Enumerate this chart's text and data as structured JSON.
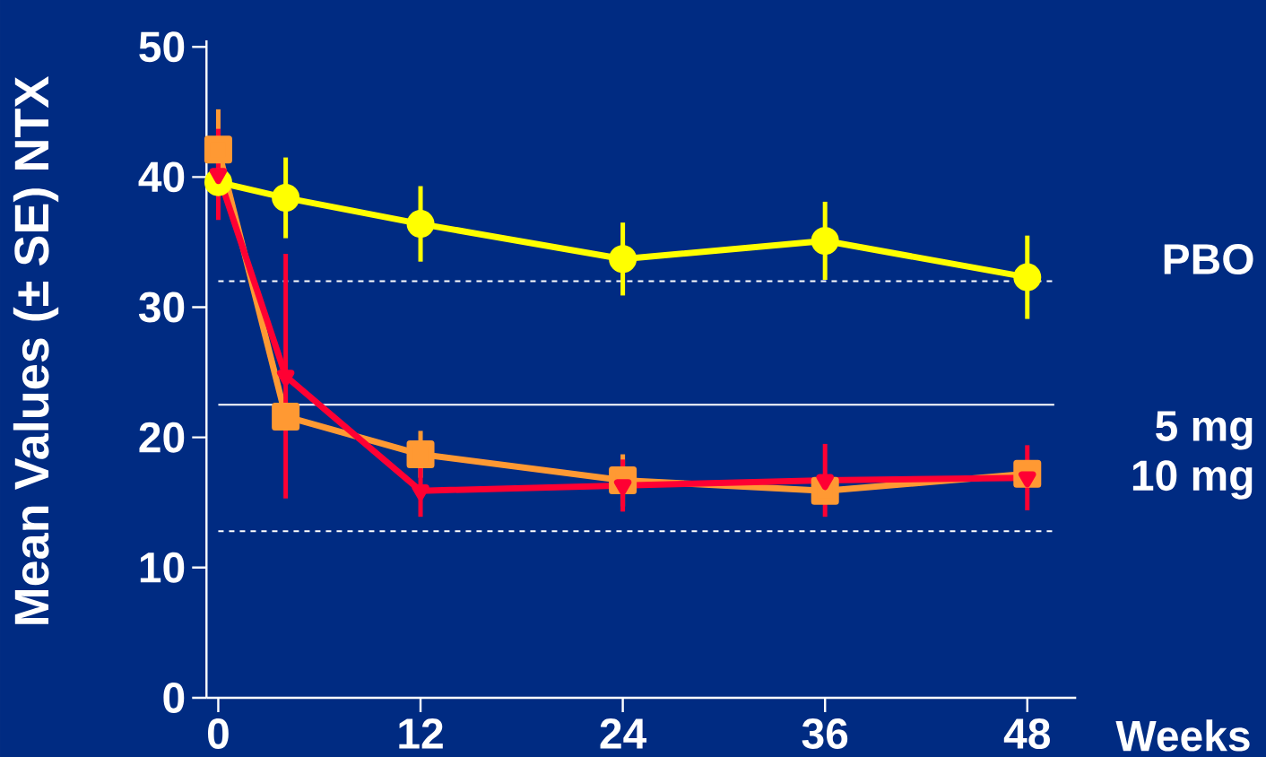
{
  "chart_data": {
    "type": "line",
    "xlabel": "Weeks",
    "ylabel": "Mean Values (± SE) NTX",
    "x": [
      0,
      4,
      12,
      24,
      36,
      48
    ],
    "series": [
      {
        "name": "PBO",
        "color": "#ffff00",
        "marker": "circle",
        "values": [
          39.6,
          38.4,
          36.4,
          33.7,
          35.1,
          32.3
        ],
        "errors": [
          null,
          3.1,
          2.9,
          2.8,
          3.0,
          3.2
        ]
      },
      {
        "name": "5 mg",
        "color": "#ff9933",
        "marker": "square",
        "values": [
          42.1,
          21.6,
          18.7,
          16.7,
          15.9,
          17.2
        ],
        "errors": [
          3.1,
          null,
          1.8,
          2.0,
          null,
          null
        ]
      },
      {
        "name": "10 mg",
        "color": "#ff0033",
        "marker": "triangle",
        "values": [
          40.2,
          24.7,
          15.9,
          16.3,
          16.7,
          16.9
        ],
        "errors": [
          3.5,
          9.4,
          2.0,
          2.0,
          2.8,
          2.5
        ]
      }
    ],
    "xlim": [
      -0.7,
      50.9
    ],
    "ylim": [
      0,
      50.5
    ],
    "xticks": [
      0,
      12,
      24,
      36,
      48
    ],
    "yticks": [
      0,
      10,
      20,
      30,
      40,
      50
    ],
    "ref_lines": [
      {
        "axis": "y",
        "value": 32.0,
        "color": "#ffffff",
        "line_style": "dashed"
      },
      {
        "axis": "y",
        "value": 22.5,
        "color": "#ffffff",
        "line_style": "solid"
      },
      {
        "axis": "y",
        "value": 12.8,
        "color": "#ffffff",
        "line_style": "dashed"
      }
    ]
  }
}
